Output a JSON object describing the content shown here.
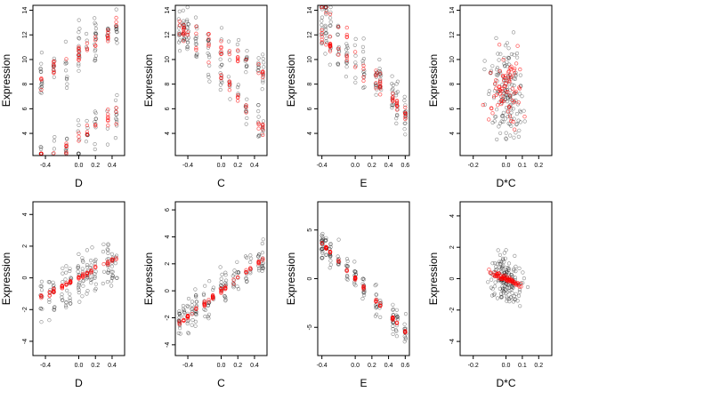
{
  "figure": {
    "colors": {
      "observed": "#000000",
      "fitted": "#ff0000"
    }
  },
  "chart_data": [
    {
      "type": "scatter",
      "xlabel": "D",
      "ylabel": "Expression",
      "xlim": [
        -0.55,
        0.55
      ],
      "ylim": [
        2.2,
        14.4
      ],
      "xticks": [
        -0.4,
        0.0,
        0.2,
        0.4
      ],
      "yticks": [
        4,
        6,
        8,
        10,
        12,
        14
      ],
      "xtick_labels": [
        "-0.4",
        "0.0",
        "0.2",
        "0.4"
      ],
      "ytick_labels": [
        "4",
        "6",
        "8",
        "10",
        "12",
        "14"
      ],
      "x_levels": [
        -0.45,
        -0.3,
        -0.15,
        0.0,
        0.1,
        0.2,
        0.35,
        0.45
      ],
      "pattern": "dual-band",
      "bands": [
        [
          10.5,
          4.6
        ],
        [
          3.6,
          4.4
        ]
      ],
      "noise": 2.2
    },
    {
      "type": "scatter",
      "xlabel": "C",
      "ylabel": "Expression",
      "xlim": [
        -0.55,
        0.55
      ],
      "ylim": [
        2.2,
        14.4
      ],
      "xticks": [
        -0.4,
        0.0,
        0.2,
        0.4
      ],
      "yticks": [
        4,
        6,
        8,
        10,
        12,
        14
      ],
      "xtick_labels": [
        "-0.4",
        "0.0",
        "0.2",
        "0.4"
      ],
      "ytick_labels": [
        "4",
        "6",
        "8",
        "10",
        "12",
        "14"
      ],
      "x_levels": [
        -0.5,
        -0.45,
        -0.4,
        -0.3,
        -0.15,
        0.0,
        0.1,
        0.2,
        0.3,
        0.45,
        0.5
      ],
      "pattern": "dual-band",
      "bands": [
        [
          11.0,
          -4.0
        ],
        [
          8.5,
          -8.0
        ]
      ],
      "noise": 2.0
    },
    {
      "type": "scatter",
      "xlabel": "E",
      "ylabel": "Expression",
      "xlim": [
        -0.45,
        0.65
      ],
      "ylim": [
        2.2,
        14.4
      ],
      "xticks": [
        -0.4,
        0.0,
        0.2,
        0.4,
        0.6
      ],
      "yticks": [
        4,
        6,
        8,
        10,
        12,
        14
      ],
      "xtick_labels": [
        "-0.4",
        "0.0",
        "0.2",
        "0.4",
        "0.6"
      ],
      "ytick_labels": [
        "4",
        "6",
        "8",
        "10",
        "12",
        "14"
      ],
      "x_levels": [
        -0.4,
        -0.35,
        -0.3,
        -0.2,
        -0.1,
        0.0,
        0.1,
        0.25,
        0.3,
        0.45,
        0.5,
        0.6
      ],
      "pattern": "dual-band",
      "bands": [
        [
          9.5,
          -6.0
        ],
        [
          11.0,
          -9.0
        ]
      ],
      "noise": 1.8
    },
    {
      "type": "scatter",
      "xlabel": "D*C",
      "ylabel": "Expression",
      "xlim": [
        -0.28,
        0.28
      ],
      "ylim": [
        2.2,
        14.4
      ],
      "xticks": [
        -0.2,
        0.0,
        0.1,
        0.2
      ],
      "yticks": [
        4,
        6,
        8,
        10,
        12,
        14
      ],
      "xtick_labels": [
        "-0.2",
        "0.0",
        "0.1",
        "0.2"
      ],
      "ytick_labels": [
        "4",
        "6",
        "8",
        "10",
        "12",
        "14"
      ],
      "pattern": "cloud",
      "center": 7.5,
      "noise": 2.8
    },
    {
      "type": "scatter",
      "xlabel": "D",
      "ylabel": "Expression",
      "xlim": [
        -0.55,
        0.55
      ],
      "ylim": [
        -4.9,
        4.8
      ],
      "xticks": [
        -0.4,
        0.0,
        0.2,
        0.4
      ],
      "yticks": [
        -4,
        -2,
        0,
        2,
        4
      ],
      "xtick_labels": [
        "-0.4",
        "0.0",
        "0.2",
        "0.4"
      ],
      "ytick_labels": [
        "-4",
        "-2",
        "0",
        "2",
        "4"
      ],
      "x_levels": [
        -0.45,
        -0.35,
        -0.3,
        -0.2,
        -0.15,
        -0.1,
        0.0,
        0.05,
        0.1,
        0.15,
        0.2,
        0.3,
        0.35,
        0.4,
        0.45
      ],
      "pattern": "line",
      "intercept": 0.0,
      "slope": 2.8,
      "noise": 1.3
    },
    {
      "type": "scatter",
      "xlabel": "C",
      "ylabel": "Expression",
      "xlim": [
        -0.55,
        0.55
      ],
      "ylim": [
        -4.8,
        6.6
      ],
      "xticks": [
        -0.4,
        0.0,
        0.2,
        0.4
      ],
      "yticks": [
        -4,
        -2,
        0,
        2,
        4,
        6
      ],
      "xtick_labels": [
        "-0.4",
        "0.0",
        "0.2",
        "0.4"
      ],
      "ytick_labels": [
        "-4",
        "-2",
        "0",
        "2",
        "4",
        "6"
      ],
      "x_levels": [
        -0.5,
        -0.45,
        -0.4,
        -0.35,
        -0.3,
        -0.2,
        -0.15,
        -0.1,
        0.0,
        0.05,
        0.15,
        0.2,
        0.3,
        0.35,
        0.45,
        0.5
      ],
      "pattern": "line",
      "intercept": 0.0,
      "slope": 4.7,
      "noise": 1.2
    },
    {
      "type": "scatter",
      "xlabel": "E",
      "ylabel": "Expression",
      "xlim": [
        -0.45,
        0.65
      ],
      "ylim": [
        -7.9,
        7.9
      ],
      "xticks": [
        -0.4,
        0.0,
        0.2,
        0.4,
        0.6
      ],
      "yticks": [
        -5,
        0,
        5
      ],
      "xtick_labels": [
        "-0.4",
        "0.0",
        "0.2",
        "0.4",
        "0.6"
      ],
      "ytick_labels": [
        "-5",
        "0",
        "5"
      ],
      "x_levels": [
        -0.4,
        -0.35,
        -0.3,
        -0.2,
        -0.1,
        0.0,
        0.1,
        0.25,
        0.3,
        0.45,
        0.5,
        0.6
      ],
      "pattern": "line",
      "intercept": 0.0,
      "slope": -9.0,
      "noise": 1.4
    },
    {
      "type": "scatter",
      "xlabel": "D*C",
      "ylabel": "Expression",
      "xlim": [
        -0.28,
        0.28
      ],
      "ylim": [
        -4.9,
        4.9
      ],
      "xticks": [
        -0.2,
        0.0,
        0.1,
        0.2
      ],
      "yticks": [
        -4,
        -2,
        0,
        2,
        4
      ],
      "xtick_labels": [
        "-0.2",
        "0.0",
        "0.1",
        "0.2"
      ],
      "ytick_labels": [
        "-4",
        "-2",
        "0",
        "2",
        "4"
      ],
      "pattern": "line-cloud",
      "intercept": 0.0,
      "slope": -4.5,
      "noise": 1.4
    }
  ]
}
